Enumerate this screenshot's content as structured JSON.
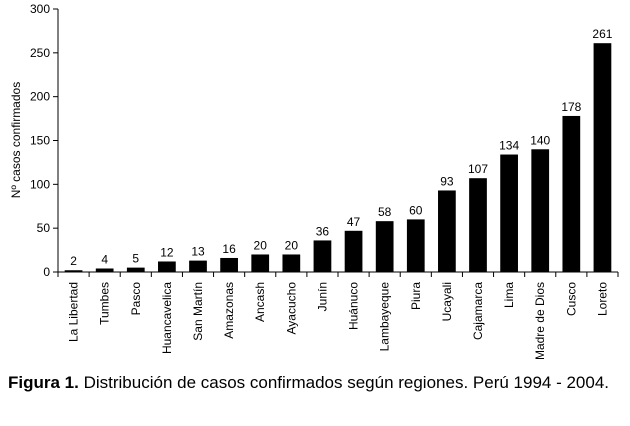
{
  "chart_data": {
    "type": "bar",
    "categories": [
      "La Libertad",
      "Tumbes",
      "Pasco",
      "Huancavelica",
      "San Martín",
      "Amazonas",
      "Ancash",
      "Ayacucho",
      "Junín",
      "Huánuco",
      "Lambayeque",
      "Piura",
      "Ucayali",
      "Cajamarca",
      "Lima",
      "Madre de Dios",
      "Cusco",
      "Loreto"
    ],
    "values": [
      2,
      4,
      5,
      12,
      13,
      16,
      20,
      20,
      36,
      47,
      58,
      60,
      93,
      107,
      134,
      140,
      178,
      261
    ],
    "ylabel": "Nº casos confirmados",
    "xlabel": "",
    "ylim": [
      0,
      300
    ],
    "yticks": [
      0,
      50,
      100,
      150,
      200,
      250,
      300
    ],
    "bar_color": "#000000",
    "grid": false,
    "legend": "none"
  },
  "caption": {
    "label": "Figura 1.",
    "text": " Distribución de casos confirmados según regiones. Perú 1994 - 2004."
  }
}
